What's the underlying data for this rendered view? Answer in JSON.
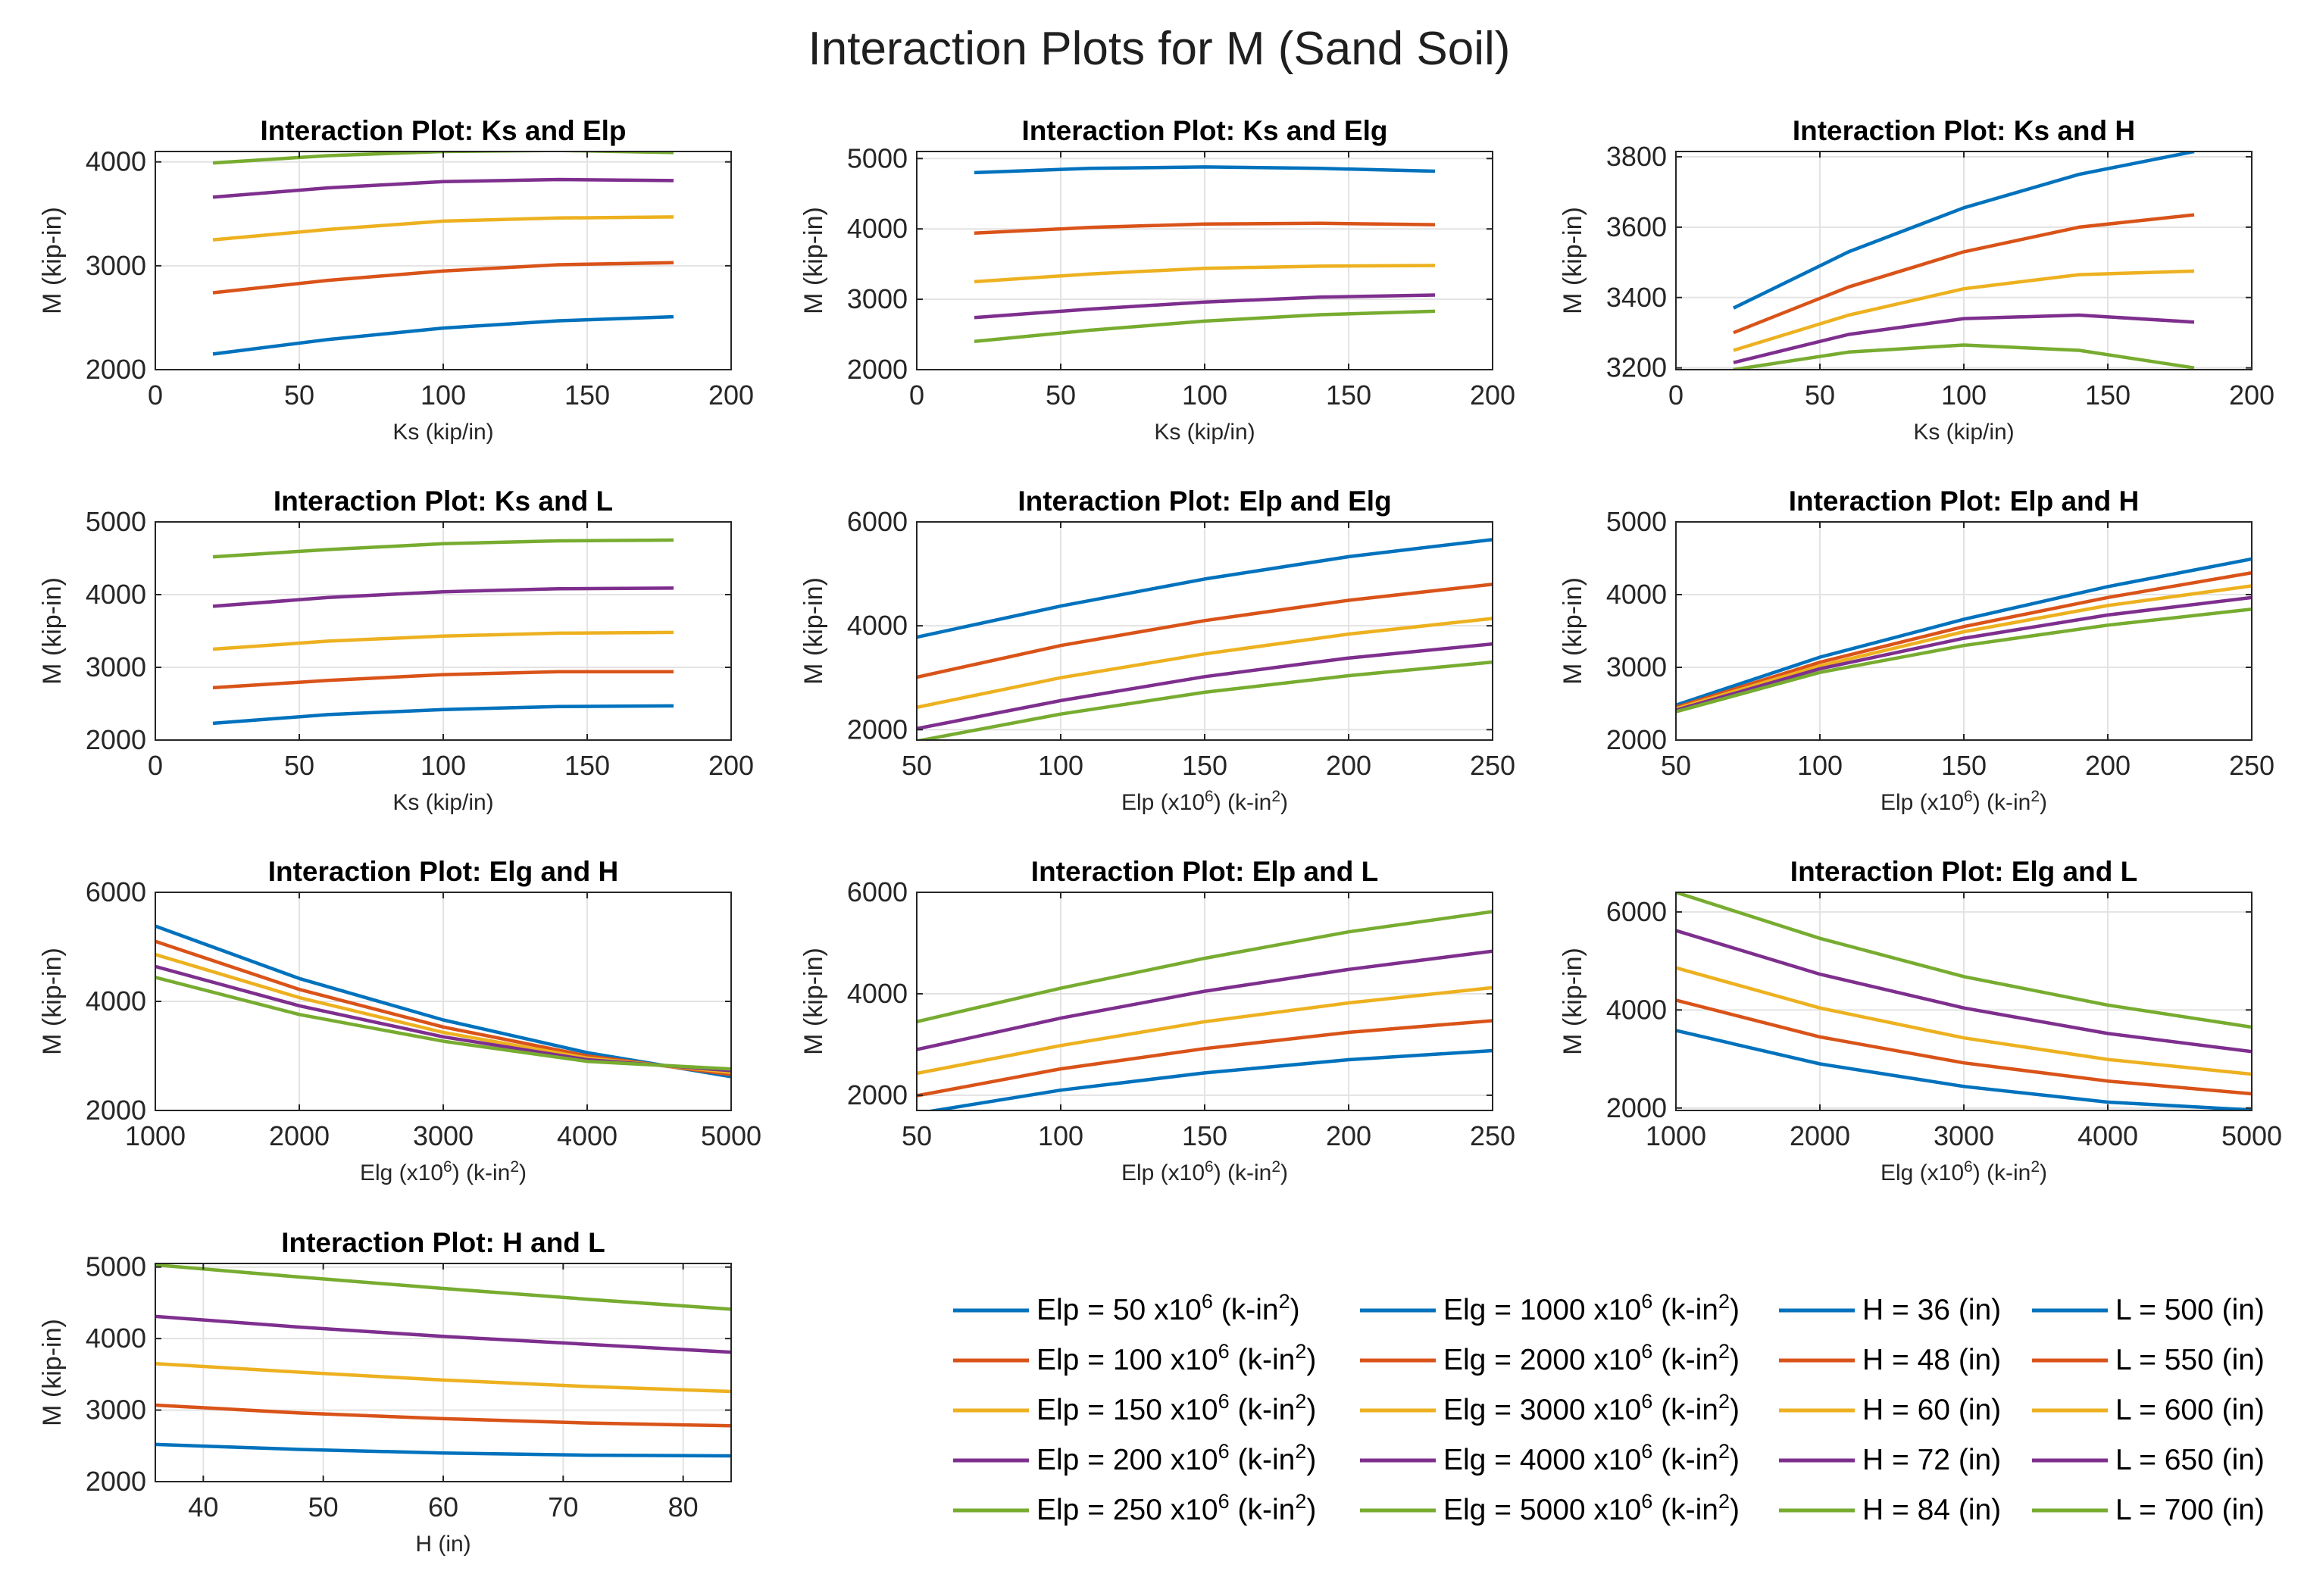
{
  "figure_title": "Interaction Plots for M (Sand Soil)",
  "colors": [
    "#0072BD",
    "#D95319",
    "#EDB120",
    "#7E2F8E",
    "#77AC30"
  ],
  "chart_data": [
    {
      "type": "line",
      "title": "Interaction Plot: Ks and Elp",
      "xlabel": "Ks (kip/in)",
      "ylabel": "M (kip-in)",
      "xlim": [
        0,
        200
      ],
      "ylim": [
        2000,
        4100
      ],
      "xticks": [
        0,
        50,
        100,
        150,
        200
      ],
      "yticks": [
        2000,
        3000,
        4000
      ],
      "x": [
        20,
        60,
        100,
        140,
        180
      ],
      "series": [
        [
          2150,
          2290,
          2400,
          2470,
          2510
        ],
        [
          2740,
          2860,
          2950,
          3010,
          3030
        ],
        [
          3250,
          3350,
          3430,
          3460,
          3470
        ],
        [
          3660,
          3750,
          3810,
          3830,
          3820
        ],
        [
          3990,
          4060,
          4100,
          4110,
          4090
        ]
      ]
    },
    {
      "type": "line",
      "title": "Interaction Plot: Ks and Elg",
      "xlabel": "Ks (kip/in)",
      "ylabel": "M (kip-in)",
      "xlim": [
        0,
        200
      ],
      "ylim": [
        2000,
        5100
      ],
      "xticks": [
        0,
        50,
        100,
        150,
        200
      ],
      "yticks": [
        2000,
        3000,
        4000,
        5000
      ],
      "x": [
        20,
        60,
        100,
        140,
        180
      ],
      "series": [
        [
          4800,
          4860,
          4880,
          4860,
          4820
        ],
        [
          3940,
          4020,
          4070,
          4080,
          4060
        ],
        [
          3250,
          3360,
          3440,
          3470,
          3480
        ],
        [
          2740,
          2860,
          2960,
          3030,
          3060
        ],
        [
          2400,
          2560,
          2690,
          2780,
          2830
        ]
      ]
    },
    {
      "type": "line",
      "title": "Interaction Plot: Ks and H",
      "xlabel": "Ks (kip/in)",
      "ylabel": "M (kip-in)",
      "xlim": [
        0,
        200
      ],
      "ylim": [
        3195,
        3815
      ],
      "xticks": [
        0,
        50,
        100,
        150,
        200
      ],
      "yticks": [
        3200,
        3400,
        3600,
        3800
      ],
      "x": [
        20,
        60,
        100,
        140,
        180
      ],
      "series": [
        [
          3370,
          3530,
          3655,
          3750,
          3815
        ],
        [
          3300,
          3430,
          3530,
          3600,
          3635
        ],
        [
          3250,
          3350,
          3425,
          3465,
          3475
        ],
        [
          3215,
          3295,
          3340,
          3350,
          3330
        ],
        [
          3195,
          3245,
          3265,
          3250,
          3200
        ]
      ]
    },
    {
      "type": "line",
      "title": "Interaction Plot: Ks and L",
      "xlabel": "Ks (kip/in)",
      "ylabel": "M (kip-in)",
      "xlim": [
        0,
        200
      ],
      "ylim": [
        2000,
        5000
      ],
      "xticks": [
        0,
        50,
        100,
        150,
        200
      ],
      "yticks": [
        2000,
        3000,
        4000,
        5000
      ],
      "x": [
        20,
        60,
        100,
        140,
        180
      ],
      "series": [
        [
          2230,
          2350,
          2420,
          2460,
          2470
        ],
        [
          2720,
          2820,
          2900,
          2940,
          2940
        ],
        [
          3250,
          3360,
          3430,
          3470,
          3480
        ],
        [
          3840,
          3960,
          4040,
          4080,
          4090
        ],
        [
          4520,
          4620,
          4700,
          4740,
          4750
        ]
      ]
    },
    {
      "type": "line",
      "title": "Interaction Plot: Elp and Elg",
      "xlabel": "Elp (x10^6) (k-in^2)",
      "ylabel": "M (kip-in)",
      "xlim": [
        50,
        250
      ],
      "ylim": [
        1800,
        6000
      ],
      "xticks": [
        50,
        100,
        150,
        200,
        250
      ],
      "yticks": [
        2000,
        4000,
        6000
      ],
      "x": [
        50,
        100,
        150,
        200,
        250
      ],
      "series": [
        [
          3780,
          4380,
          4900,
          5330,
          5660
        ],
        [
          3010,
          3620,
          4100,
          4490,
          4800
        ],
        [
          2430,
          3000,
          3460,
          3840,
          4140
        ],
        [
          2020,
          2560,
          3020,
          3380,
          3650
        ],
        [
          1780,
          2300,
          2720,
          3040,
          3300
        ]
      ]
    },
    {
      "type": "line",
      "title": "Interaction Plot: Elp and H",
      "xlabel": "Elp (x10^6) (k-in^2)",
      "ylabel": "M (kip-in)",
      "xlim": [
        50,
        250
      ],
      "ylim": [
        2000,
        5000
      ],
      "xticks": [
        50,
        100,
        150,
        200,
        250
      ],
      "yticks": [
        2000,
        3000,
        4000,
        5000
      ],
      "x": [
        50,
        100,
        150,
        200,
        250
      ],
      "series": [
        [
          2480,
          3140,
          3660,
          4110,
          4490
        ],
        [
          2450,
          3070,
          3560,
          3960,
          4300
        ],
        [
          2430,
          3020,
          3490,
          3850,
          4120
        ],
        [
          2410,
          2980,
          3400,
          3720,
          3960
        ],
        [
          2390,
          2930,
          3300,
          3580,
          3800
        ]
      ]
    },
    {
      "type": "line",
      "title": "Interaction Plot: Elg and H",
      "xlabel": "Elg (x10^6) (k-in^2)",
      "ylabel": "M (kip-in)",
      "xlim": [
        1000,
        5000
      ],
      "ylim": [
        2000,
        6000
      ],
      "xticks": [
        1000,
        2000,
        3000,
        4000,
        5000
      ],
      "yticks": [
        2000,
        4000,
        6000
      ],
      "x": [
        1000,
        2000,
        3000,
        4000,
        5000
      ],
      "series": [
        [
          5380,
          4420,
          3660,
          3060,
          2620
        ],
        [
          5100,
          4220,
          3530,
          3000,
          2660
        ],
        [
          4860,
          4070,
          3430,
          2960,
          2700
        ],
        [
          4640,
          3920,
          3350,
          2930,
          2730
        ],
        [
          4440,
          3760,
          3270,
          2900,
          2760
        ]
      ]
    },
    {
      "type": "line",
      "title": "Interaction Plot: Elp and L",
      "xlabel": "Elp (x10^6) (k-in^2)",
      "ylabel": "M (kip-in)",
      "xlim": [
        50,
        250
      ],
      "ylim": [
        1700,
        6000
      ],
      "xticks": [
        50,
        100,
        150,
        200,
        250
      ],
      "yticks": [
        2000,
        4000,
        6000
      ],
      "x": [
        50,
        100,
        150,
        200,
        250
      ],
      "series": [
        [
          1640,
          2100,
          2440,
          2700,
          2880
        ],
        [
          1990,
          2520,
          2920,
          3240,
          3470
        ],
        [
          2430,
          2980,
          3450,
          3820,
          4120
        ],
        [
          2900,
          3520,
          4050,
          4480,
          4840
        ],
        [
          3450,
          4110,
          4700,
          5220,
          5620
        ]
      ]
    },
    {
      "type": "line",
      "title": "Interaction Plot: Elg and L",
      "xlabel": "Elg (x10^6) (k-in^2)",
      "ylabel": "M (kip-in)",
      "xlim": [
        1000,
        5000
      ],
      "ylim": [
        1950,
        6400
      ],
      "xticks": [
        1000,
        2000,
        3000,
        4000,
        5000
      ],
      "yticks": [
        2000,
        4000,
        6000
      ],
      "x": [
        1000,
        2000,
        3000,
        4000,
        5000
      ],
      "series": [
        [
          3580,
          2900,
          2440,
          2120,
          1960
        ],
        [
          4200,
          3450,
          2920,
          2550,
          2290
        ],
        [
          4860,
          4040,
          3430,
          2990,
          2690
        ],
        [
          5620,
          4730,
          4040,
          3520,
          3150
        ],
        [
          6400,
          5460,
          4680,
          4100,
          3650
        ]
      ]
    },
    {
      "type": "line",
      "title": "Interaction Plot: H and L",
      "xlabel": "H (in)",
      "ylabel": "M (kip-in)",
      "xlim": [
        36,
        84
      ],
      "ylim": [
        2000,
        5050
      ],
      "xticks": [
        40,
        50,
        60,
        70,
        80
      ],
      "yticks": [
        2000,
        3000,
        4000,
        5000
      ],
      "x": [
        36,
        48,
        60,
        72,
        84
      ],
      "series": [
        [
          2520,
          2450,
          2400,
          2370,
          2360
        ],
        [
          3070,
          2960,
          2880,
          2820,
          2780
        ],
        [
          3650,
          3530,
          3420,
          3330,
          3260
        ],
        [
          4310,
          4160,
          4030,
          3920,
          3810
        ],
        [
          5030,
          4860,
          4700,
          4550,
          4410
        ]
      ]
    }
  ],
  "legend": {
    "columns": [
      [
        "Elp = 50 x10^6 (k-in^2)",
        "Elp = 100 x10^6 (k-in^2)",
        "Elp = 150 x10^6 (k-in^2)",
        "Elp = 200 x10^6 (k-in^2)",
        "Elp = 250 x10^6 (k-in^2)"
      ],
      [
        "Elg = 1000 x10^6 (k-in^2)",
        "Elg = 2000 x10^6 (k-in^2)",
        "Elg = 3000 x10^6 (k-in^2)",
        "Elg = 4000 x10^6 (k-in^2)",
        "Elg = 5000 x10^6 (k-in^2)"
      ],
      [
        "H = 36 (in)",
        "H = 48 (in)",
        "H = 60 (in)",
        "H = 72 (in)",
        "H = 84 (in)"
      ],
      [
        "L = 500 (in)",
        "L = 550 (in)",
        "L = 600 (in)",
        "L = 650 (in)",
        "L = 700 (in)"
      ]
    ]
  }
}
